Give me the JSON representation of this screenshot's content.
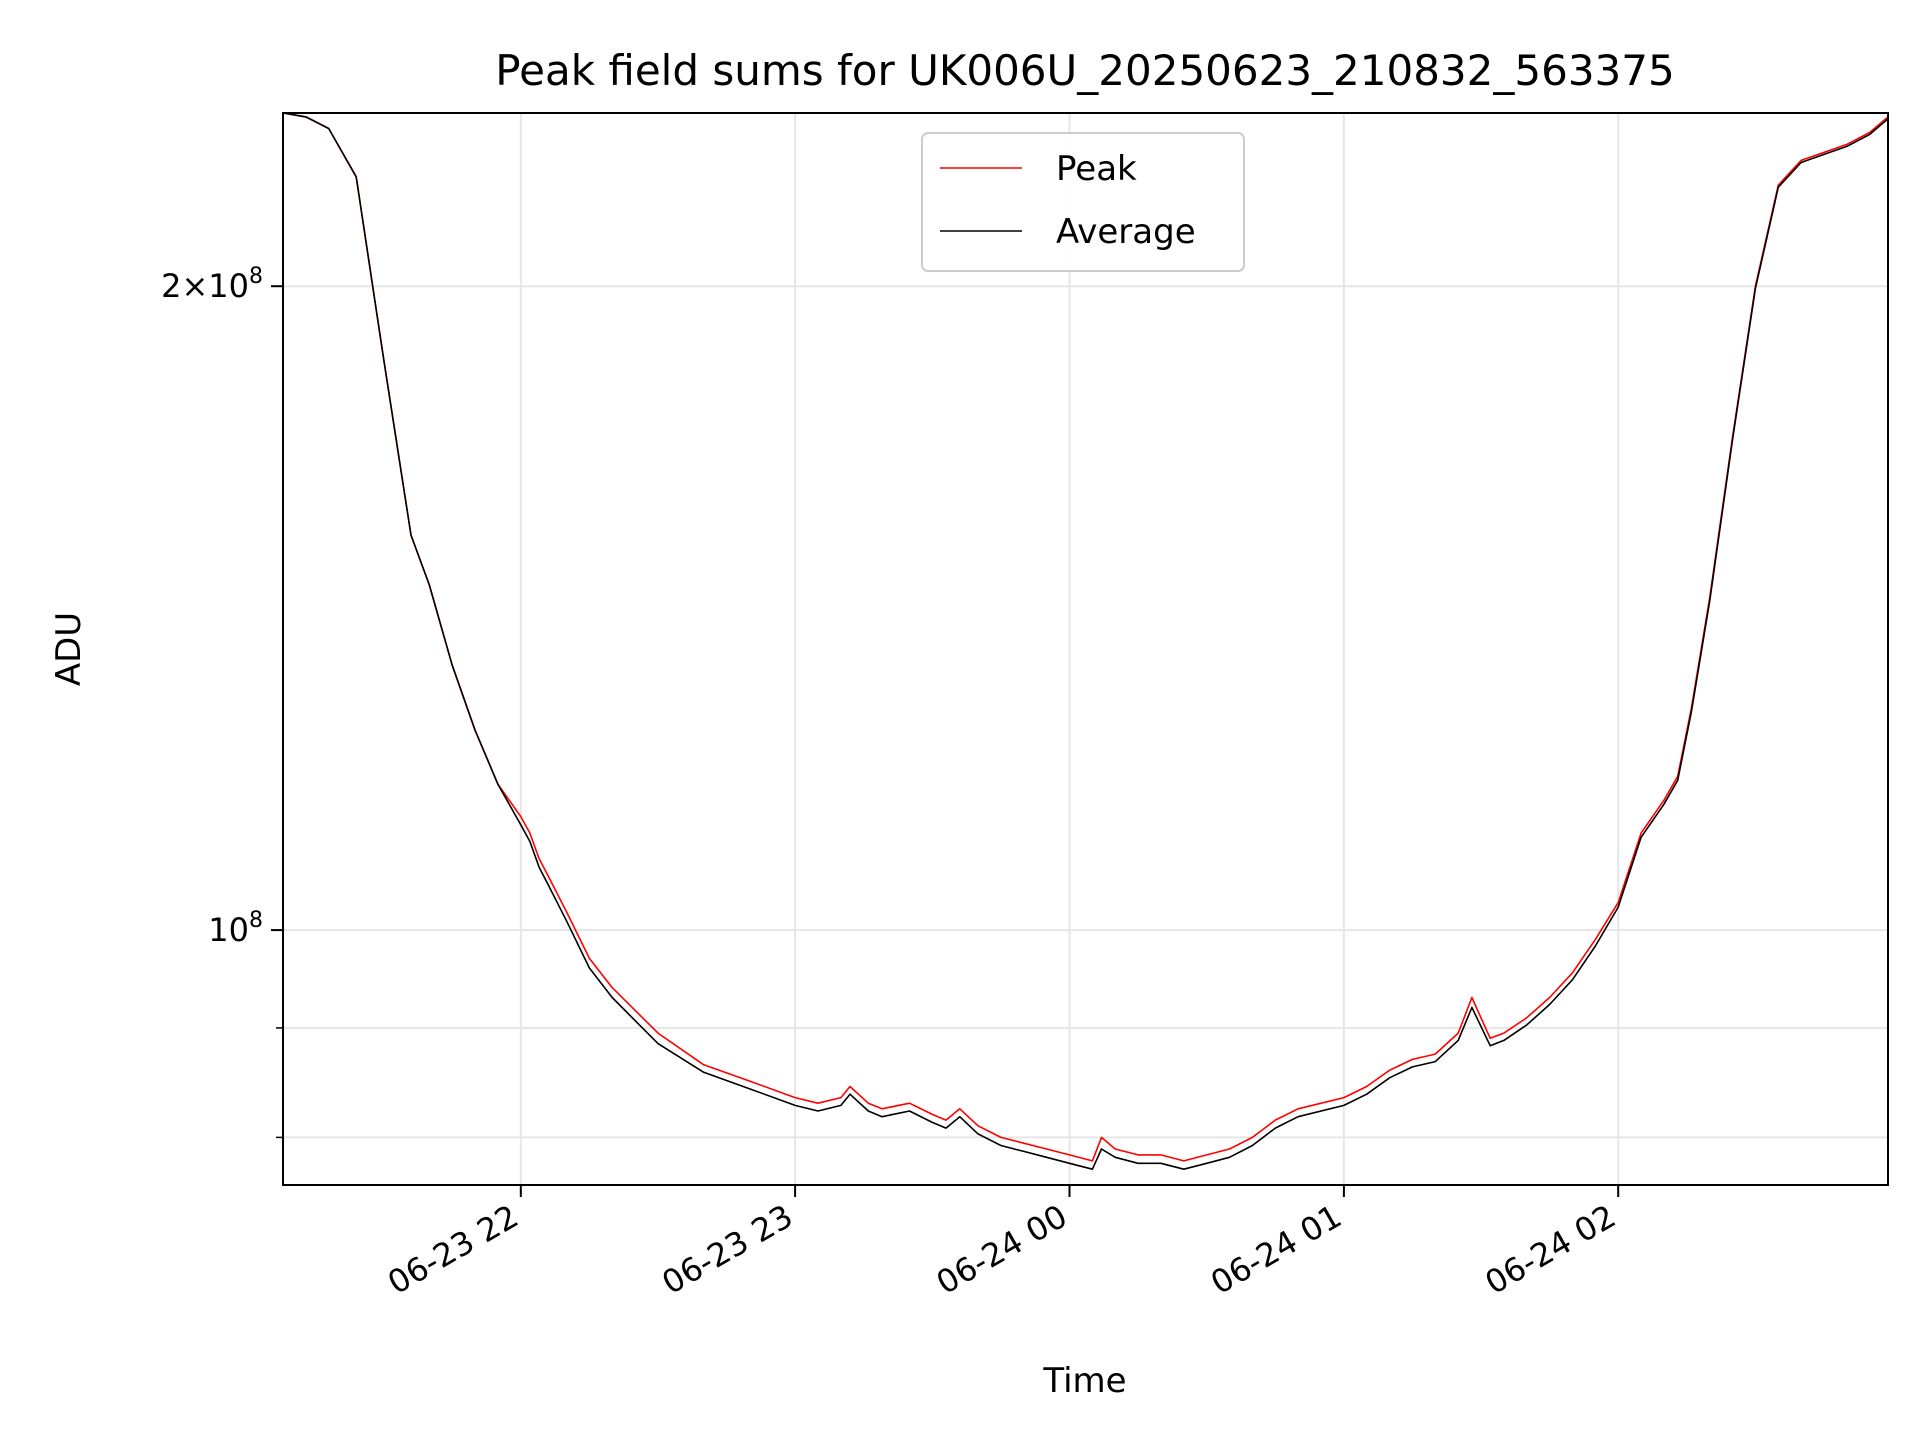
{
  "chart_data": {
    "type": "line",
    "title": "Peak field sums for UK006U_20250623_210832_563375",
    "xlabel": "Time",
    "ylabel": "ADU",
    "yscale": "log",
    "grid": true,
    "legend_position": "top-center",
    "xlim": [
      "2025-06-23 21:08",
      "2025-06-24 02:59"
    ],
    "ylim": [
      76000000,
      241000000
    ],
    "x_ticks": [
      {
        "value": "2025-06-23 22:00",
        "label": "06-23 22"
      },
      {
        "value": "2025-06-23 23:00",
        "label": "06-23 23"
      },
      {
        "value": "2025-06-24 00:00",
        "label": "06-24 00"
      },
      {
        "value": "2025-06-24 01:00",
        "label": "06-24 01"
      },
      {
        "value": "2025-06-24 02:00",
        "label": "06-24 02"
      }
    ],
    "y_major_ticks": [
      {
        "value": 100000000,
        "base": "10",
        "exp": "8",
        "coef": ""
      },
      {
        "value": 200000000,
        "base": "10",
        "exp": "8",
        "coef": "2"
      }
    ],
    "y_minor_ticks": [
      90000000,
      80000000
    ],
    "series": [
      {
        "name": "Peak",
        "color": "#ff0000",
        "x": [
          "2025-06-23 21:08",
          "2025-06-23 21:13",
          "2025-06-23 21:18",
          "2025-06-23 21:24",
          "2025-06-23 21:30",
          "2025-06-23 21:36",
          "2025-06-23 21:40",
          "2025-06-23 21:45",
          "2025-06-23 21:50",
          "2025-06-23 21:55",
          "2025-06-23 22:00",
          "2025-06-23 22:02",
          "2025-06-23 22:04",
          "2025-06-23 22:06",
          "2025-06-23 22:10",
          "2025-06-23 22:15",
          "2025-06-23 22:20",
          "2025-06-23 22:30",
          "2025-06-23 22:40",
          "2025-06-23 22:50",
          "2025-06-23 23:00",
          "2025-06-23 23:05",
          "2025-06-23 23:10",
          "2025-06-23 23:12",
          "2025-06-23 23:16",
          "2025-06-23 23:19",
          "2025-06-23 23:25",
          "2025-06-23 23:30",
          "2025-06-23 23:33",
          "2025-06-23 23:36",
          "2025-06-23 23:40",
          "2025-06-23 23:45",
          "2025-06-23 23:50",
          "2025-06-23 23:55",
          "2025-06-24 00:00",
          "2025-06-24 00:05",
          "2025-06-24 00:07",
          "2025-06-24 00:10",
          "2025-06-24 00:15",
          "2025-06-24 00:20",
          "2025-06-24 00:25",
          "2025-06-24 00:30",
          "2025-06-24 00:35",
          "2025-06-24 00:40",
          "2025-06-24 00:45",
          "2025-06-24 00:50",
          "2025-06-24 01:00",
          "2025-06-24 01:05",
          "2025-06-24 01:10",
          "2025-06-24 01:15",
          "2025-06-24 01:20",
          "2025-06-24 01:25",
          "2025-06-24 01:28",
          "2025-06-24 01:32",
          "2025-06-24 01:35",
          "2025-06-24 01:40",
          "2025-06-24 01:45",
          "2025-06-24 01:50",
          "2025-06-24 01:55",
          "2025-06-24 02:00",
          "2025-06-24 02:05",
          "2025-06-24 02:10",
          "2025-06-24 02:13",
          "2025-06-24 02:16",
          "2025-06-24 02:20",
          "2025-06-24 02:25",
          "2025-06-24 02:30",
          "2025-06-24 02:35",
          "2025-06-24 02:40",
          "2025-06-24 02:45",
          "2025-06-24 02:50",
          "2025-06-24 02:55",
          "2025-06-24 02:59"
        ],
        "values": [
          241000000,
          240000000,
          237000000,
          225000000,
          185000000,
          153000000,
          145000000,
          133000000,
          124000000,
          117000000,
          113000000,
          111000000,
          108000000,
          106000000,
          102000000,
          97000000,
          94000000,
          89500000,
          86500000,
          85000000,
          83500000,
          83000000,
          83500000,
          84500000,
          83000000,
          82500000,
          83000000,
          82000000,
          81500000,
          82500000,
          81000000,
          80000000,
          79500000,
          79000000,
          78500000,
          78000000,
          80000000,
          79000000,
          78500000,
          78500000,
          78000000,
          78500000,
          79000000,
          80000000,
          81500000,
          82500000,
          83500000,
          84500000,
          86000000,
          87000000,
          87500000,
          89500000,
          93000000,
          89000000,
          89500000,
          91000000,
          93000000,
          95500000,
          99000000,
          103000000,
          111000000,
          115000000,
          118000000,
          127000000,
          143000000,
          170000000,
          200000000,
          223000000,
          229000000,
          231000000,
          233000000,
          236000000,
          240000000
        ]
      },
      {
        "name": "Average",
        "color": "#000000",
        "x": [
          "2025-06-23 21:08",
          "2025-06-23 21:13",
          "2025-06-23 21:18",
          "2025-06-23 21:24",
          "2025-06-23 21:30",
          "2025-06-23 21:36",
          "2025-06-23 21:40",
          "2025-06-23 21:45",
          "2025-06-23 21:50",
          "2025-06-23 21:55",
          "2025-06-23 22:00",
          "2025-06-23 22:02",
          "2025-06-23 22:04",
          "2025-06-23 22:06",
          "2025-06-23 22:10",
          "2025-06-23 22:15",
          "2025-06-23 22:20",
          "2025-06-23 22:30",
          "2025-06-23 22:40",
          "2025-06-23 22:50",
          "2025-06-23 23:00",
          "2025-06-23 23:05",
          "2025-06-23 23:10",
          "2025-06-23 23:12",
          "2025-06-23 23:16",
          "2025-06-23 23:19",
          "2025-06-23 23:25",
          "2025-06-23 23:30",
          "2025-06-23 23:33",
          "2025-06-23 23:36",
          "2025-06-23 23:40",
          "2025-06-23 23:45",
          "2025-06-23 23:50",
          "2025-06-23 23:55",
          "2025-06-24 00:00",
          "2025-06-24 00:05",
          "2025-06-24 00:07",
          "2025-06-24 00:10",
          "2025-06-24 00:15",
          "2025-06-24 00:20",
          "2025-06-24 00:25",
          "2025-06-24 00:30",
          "2025-06-24 00:35",
          "2025-06-24 00:40",
          "2025-06-24 00:45",
          "2025-06-24 00:50",
          "2025-06-24 01:00",
          "2025-06-24 01:05",
          "2025-06-24 01:10",
          "2025-06-24 01:15",
          "2025-06-24 01:20",
          "2025-06-24 01:25",
          "2025-06-24 01:28",
          "2025-06-24 01:32",
          "2025-06-24 01:35",
          "2025-06-24 01:40",
          "2025-06-24 01:45",
          "2025-06-24 01:50",
          "2025-06-24 01:55",
          "2025-06-24 02:00",
          "2025-06-24 02:05",
          "2025-06-24 02:10",
          "2025-06-24 02:13",
          "2025-06-24 02:16",
          "2025-06-24 02:20",
          "2025-06-24 02:25",
          "2025-06-24 02:30",
          "2025-06-24 02:35",
          "2025-06-24 02:40",
          "2025-06-24 02:45",
          "2025-06-24 02:50",
          "2025-06-24 02:55",
          "2025-06-24 02:59"
        ],
        "values": [
          241000000,
          240000000,
          237000000,
          225000000,
          185000000,
          153000000,
          145000000,
          133000000,
          124000000,
          117000000,
          112000000,
          110000000,
          107000000,
          105000000,
          101000000,
          96000000,
          93000000,
          88500000,
          85800000,
          84300000,
          82800000,
          82300000,
          82800000,
          83800000,
          82300000,
          81800000,
          82300000,
          81300000,
          80800000,
          81800000,
          80300000,
          79300000,
          78800000,
          78300000,
          77800000,
          77300000,
          79000000,
          78300000,
          77800000,
          77800000,
          77300000,
          77800000,
          78300000,
          79300000,
          80800000,
          81800000,
          82800000,
          83800000,
          85300000,
          86300000,
          86800000,
          88800000,
          92000000,
          88300000,
          88800000,
          90300000,
          92300000,
          94800000,
          98300000,
          102500000,
          110500000,
          114500000,
          117500000,
          126500000,
          142500000,
          169500000,
          199500000,
          222500000,
          228500000,
          230500000,
          232500000,
          235500000,
          239500000
        ]
      }
    ]
  }
}
